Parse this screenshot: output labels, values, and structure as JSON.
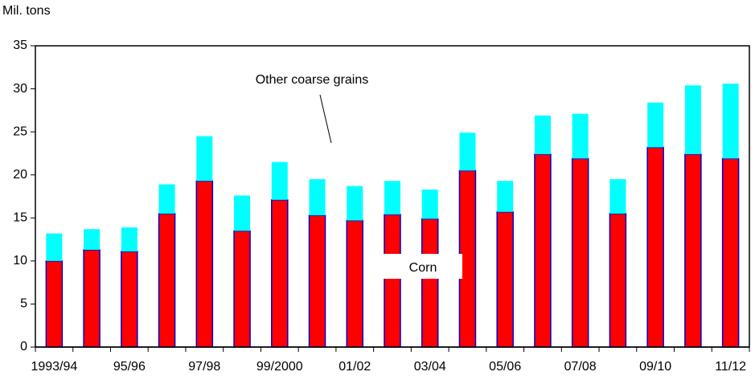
{
  "chart_data": {
    "type": "stacked_bar",
    "y_label": "Mil. tons",
    "categories": [
      "1993/94",
      null,
      "95/96",
      null,
      "97/98",
      null,
      "99/2000",
      null,
      "01/02",
      null,
      "03/04",
      null,
      "05/06",
      null,
      "07/08",
      null,
      "09/10",
      null,
      "11/12"
    ],
    "series": [
      {
        "name": "Corn",
        "color": "#ff0000",
        "values": [
          10.0,
          11.3,
          11.1,
          15.5,
          19.3,
          13.5,
          17.1,
          15.3,
          14.7,
          15.4,
          14.9,
          20.5,
          15.7,
          22.4,
          21.9,
          15.5,
          23.2,
          22.4,
          21.9
        ]
      },
      {
        "name": "Other coarse grains",
        "color": "#00ffff",
        "values": [
          3.2,
          2.4,
          2.8,
          3.4,
          5.2,
          4.1,
          4.4,
          4.2,
          4.0,
          3.9,
          3.4,
          4.4,
          3.6,
          4.5,
          5.2,
          4.0,
          5.2,
          8.0,
          8.7
        ]
      }
    ],
    "bar_edge_color": "#0000cc",
    "ylim": [
      0,
      35
    ],
    "yticks": [
      0,
      5,
      10,
      15,
      20,
      25,
      30,
      35
    ]
  }
}
